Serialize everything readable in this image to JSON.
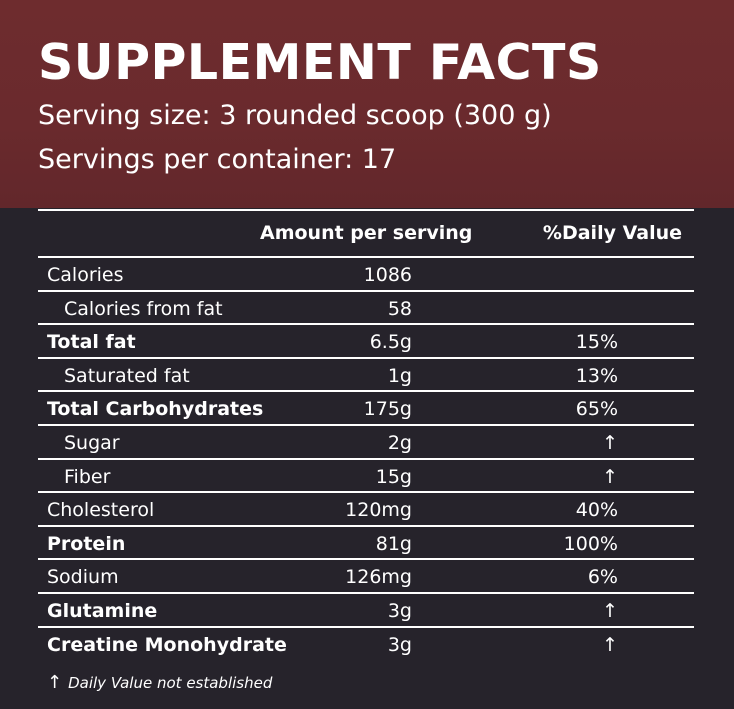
{
  "header": {
    "title": "SUPPLEMENT FACTS",
    "serving_size": "Serving size: 3 rounded scoop (300 g)",
    "servings_per_container": "Servings per container: 17"
  },
  "table": {
    "columns": {
      "amount": "Amount per serving",
      "daily": "%Daily Value"
    },
    "rows": [
      {
        "name": "Calories",
        "amount": "1086",
        "daily": "",
        "bold": false,
        "indent": false
      },
      {
        "name": "Calories from fat",
        "amount": "58",
        "daily": "",
        "bold": false,
        "indent": true
      },
      {
        "name": "Total fat",
        "amount": "6.5g",
        "daily": "15%",
        "bold": true,
        "indent": false
      },
      {
        "name": "Saturated fat",
        "amount": "1g",
        "daily": "13%",
        "bold": false,
        "indent": true
      },
      {
        "name": "Total Carbohydrates",
        "amount": "175g",
        "daily": "65%",
        "bold": true,
        "indent": false
      },
      {
        "name": "Sugar",
        "amount": "2g",
        "daily": "↑",
        "bold": false,
        "indent": true
      },
      {
        "name": "Fiber",
        "amount": "15g",
        "daily": "↑",
        "bold": false,
        "indent": true
      },
      {
        "name": "Cholesterol",
        "amount": "120mg",
        "daily": "40%",
        "bold": false,
        "indent": false
      },
      {
        "name": "Protein",
        "amount": "81g",
        "daily": "100%",
        "bold": true,
        "indent": false
      },
      {
        "name": "Sodium",
        "amount": "126mg",
        "daily": "6%",
        "bold": false,
        "indent": false
      },
      {
        "name": "Glutamine",
        "amount": "3g",
        "daily": "↑",
        "bold": true,
        "indent": false
      },
      {
        "name": "Creatine Monohydrate",
        "amount": "3g",
        "daily": "↑",
        "bold": true,
        "indent": false
      }
    ]
  },
  "footnote": {
    "symbol": "↑",
    "text": "Daily Value not established"
  },
  "colors": {
    "header_bg": "#6a2a2d",
    "body_bg": "#26232b",
    "text": "#ffffff"
  }
}
